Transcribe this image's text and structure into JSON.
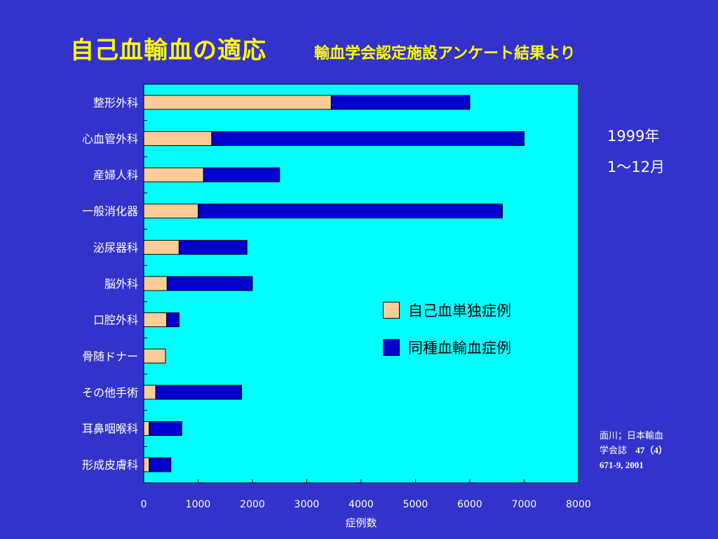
{
  "title": {
    "main": "自己血輸血の適応",
    "sub": "輸血学会認定施設アンケート結果より"
  },
  "period": {
    "year": "1999年",
    "months": "1～12月"
  },
  "citation": {
    "line1": "面川；日本輸血",
    "line2_text": "学会誌",
    "line2_num": "47（4）",
    "line3": "671-9, 2001"
  },
  "colors": {
    "background": "#3333cc",
    "plot_area": "#00ffff",
    "autologous": "#ffcc99",
    "homologous": "#0000cc",
    "title": "#ffff00"
  },
  "chart_data": {
    "type": "bar",
    "orientation": "horizontal",
    "stacked": true,
    "xlabel": "症例数",
    "xlim": [
      0,
      8000
    ],
    "xticks": [
      "0",
      "1000",
      "2000",
      "3000",
      "4000",
      "5000",
      "6000",
      "7000",
      "8000"
    ],
    "categories": [
      "整形外科",
      "心血管外科",
      "産婦人科",
      "一般消化器",
      "泌尿器科",
      "脳外科",
      "口腔外科",
      "骨随ドナー",
      "その他手術",
      "耳鼻咽喉科",
      "形成皮膚科"
    ],
    "series": [
      {
        "name": "自己血単独症例",
        "color": "#ffcc99",
        "values": [
          3450,
          1250,
          1100,
          1000,
          650,
          430,
          420,
          400,
          220,
          100,
          100
        ]
      },
      {
        "name": "同種血輸血症例",
        "color": "#0000cc",
        "values": [
          2550,
          5750,
          1400,
          5600,
          1250,
          1570,
          230,
          0,
          1580,
          600,
          400
        ]
      }
    ],
    "legend_position": "inside-right"
  }
}
